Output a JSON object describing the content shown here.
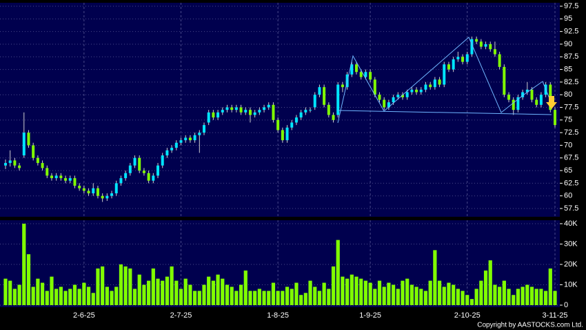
{
  "chart_data": {
    "type": "candlestick",
    "categories": [
      null,
      null,
      null,
      null,
      null,
      null,
      null,
      null,
      null,
      null,
      null,
      null,
      null,
      null,
      null,
      null,
      null,
      "2-6-25",
      null,
      null,
      null,
      null,
      null,
      null,
      null,
      null,
      null,
      null,
      null,
      null,
      null,
      null,
      null,
      null,
      null,
      null,
      null,
      null,
      "2-7-25",
      null,
      null,
      null,
      null,
      null,
      null,
      null,
      null,
      null,
      null,
      null,
      null,
      null,
      null,
      null,
      null,
      null,
      null,
      null,
      null,
      "1-8-25",
      null,
      null,
      null,
      null,
      null,
      null,
      null,
      null,
      null,
      null,
      null,
      null,
      null,
      null,
      null,
      null,
      null,
      null,
      null,
      "1-9-25",
      null,
      null,
      null,
      null,
      null,
      null,
      null,
      null,
      null,
      null,
      null,
      null,
      null,
      null,
      null,
      null,
      null,
      null,
      null,
      null,
      "2-10-25",
      null,
      null,
      null,
      null,
      null,
      null,
      null,
      null,
      null,
      null,
      null,
      null,
      null,
      null,
      null,
      null,
      null,
      null,
      "3-11-25"
    ],
    "open": [
      66,
      66.5,
      67,
      66,
      68,
      72.5,
      70,
      67.5,
      66.5,
      65.5,
      64,
      63.5,
      64,
      63.5,
      63,
      63.5,
      62,
      61.5,
      61,
      60.5,
      61.5,
      60,
      59.5,
      60,
      60.5,
      62.5,
      63.5,
      64.5,
      66,
      67.5,
      65,
      64.5,
      63,
      64,
      66,
      68,
      69,
      69.5,
      70.5,
      71,
      71.5,
      71,
      72,
      72.5,
      74.5,
      76.5,
      75.5,
      76.5,
      77,
      77.5,
      77,
      77.5,
      76.5,
      77,
      76,
      76.5,
      77,
      77.5,
      78,
      75,
      73,
      71,
      73.5,
      74.5,
      75.5,
      76.5,
      77,
      77.5,
      80,
      81.5,
      78,
      76,
      76,
      82,
      81.5,
      84,
      86,
      84.5,
      83.5,
      84.5,
      83,
      80,
      79,
      77.5,
      78.5,
      79.5,
      80,
      79.5,
      80.5,
      81,
      80.5,
      81,
      82,
      81.5,
      83,
      82,
      86,
      85,
      87,
      87.5,
      86.5,
      88,
      91,
      90.5,
      89.5,
      90,
      89,
      88,
      85.5,
      80,
      79,
      77,
      79.5,
      80.5,
      81,
      79,
      78,
      80,
      82,
      77
    ],
    "high": [
      67.2,
      69,
      67.5,
      66.5,
      76.5,
      73,
      70.5,
      68,
      67,
      66,
      64.5,
      64.5,
      64.5,
      64,
      64,
      64,
      62.5,
      62,
      61.5,
      62.5,
      62,
      60.5,
      60.5,
      61,
      63,
      64,
      65,
      66.5,
      68,
      68,
      65.5,
      65,
      64.5,
      66.5,
      68.5,
      69.5,
      70,
      71,
      71.5,
      72,
      72,
      72.5,
      73,
      74.5,
      77,
      77,
      77,
      77.5,
      78,
      78,
      78,
      78,
      77.5,
      77.5,
      77,
      77.5,
      78,
      78.5,
      78.5,
      75.5,
      73.5,
      74,
      75,
      76,
      77,
      77.5,
      77.5,
      80.5,
      82,
      82,
      78.5,
      76.5,
      82.5,
      82.5,
      84.5,
      86.5,
      86.5,
      85,
      85,
      85,
      83.5,
      80.5,
      79.5,
      79,
      80,
      80.5,
      80.5,
      81,
      81.5,
      81.5,
      81.5,
      82.5,
      82.5,
      83.5,
      83.5,
      86.5,
      86.5,
      87.5,
      88.5,
      88,
      88.5,
      91.5,
      91.5,
      91,
      90.5,
      90.5,
      90.5,
      88.5,
      86,
      80.5,
      79.5,
      80,
      81,
      82.5,
      81.5,
      79.5,
      80.5,
      82.5,
      82.5,
      77.5
    ],
    "low": [
      65.3,
      65.8,
      65.5,
      65,
      67.5,
      69.5,
      67,
      66,
      65,
      63.5,
      63,
      63,
      63,
      62.5,
      62.5,
      61.5,
      61,
      60.5,
      60,
      60,
      59.5,
      58.8,
      59,
      59.5,
      60,
      62,
      63,
      64,
      65.5,
      64.5,
      64,
      62.5,
      62.5,
      63.5,
      65.5,
      67.5,
      68.5,
      69,
      70,
      70.5,
      70.5,
      70.5,
      68.5,
      72,
      74,
      75,
      75,
      76,
      76.5,
      76.5,
      76.5,
      76,
      76,
      74.5,
      75.5,
      76,
      76.5,
      77,
      74.5,
      72.5,
      70.5,
      70.5,
      73,
      74,
      75,
      76,
      76.5,
      77,
      79.5,
      77.5,
      75.5,
      74.5,
      75.5,
      80.5,
      81,
      83.5,
      84,
      83,
      83,
      82.5,
      79.5,
      78.5,
      77,
      77,
      78,
      79,
      79,
      79,
      80,
      80,
      80,
      80.5,
      81,
      81,
      81.5,
      81.5,
      84.5,
      84.5,
      86.5,
      86,
      86,
      87.5,
      90,
      89,
      89,
      88.5,
      87.5,
      85,
      79.5,
      78.5,
      76,
      76.5,
      79,
      80,
      78.5,
      77.5,
      77.5,
      79.5,
      76.5,
      73.5
    ],
    "close": [
      66.5,
      67,
      66,
      65.5,
      72.5,
      70,
      67.5,
      66.5,
      65.5,
      64,
      63.5,
      64,
      63.5,
      63,
      63.5,
      62,
      61.5,
      61,
      60.5,
      61.5,
      60,
      59.5,
      60,
      60.5,
      62.5,
      63.5,
      64.5,
      66,
      67.5,
      65,
      64.5,
      63,
      64,
      66,
      68,
      69,
      69.5,
      70.5,
      71,
      71.5,
      71,
      72,
      72.5,
      74,
      76.5,
      75.5,
      76.5,
      77,
      77.5,
      77,
      77.5,
      76.5,
      77,
      76,
      76.5,
      77,
      77.5,
      78,
      75,
      73,
      71,
      73.5,
      74.5,
      75.5,
      76.5,
      77,
      77,
      80,
      81.5,
      78,
      76,
      75,
      82,
      81.5,
      84,
      86,
      84.5,
      83.5,
      84.5,
      83,
      80,
      79,
      77.5,
      78.5,
      79.5,
      80,
      79.5,
      80.5,
      81,
      80.5,
      81,
      82,
      81.5,
      83,
      82,
      86,
      85,
      87,
      87.5,
      86.5,
      88,
      91,
      90.5,
      89.5,
      90,
      89,
      88,
      85.5,
      80,
      79,
      77,
      79.5,
      80.5,
      81,
      79,
      78,
      80,
      82,
      77,
      74
    ],
    "volume": [
      13000,
      12000,
      8000,
      10000,
      40000,
      25000,
      9000,
      13000,
      11000,
      7000,
      14000,
      8000,
      9000,
      7000,
      8000,
      10000,
      8000,
      11000,
      9000,
      6000,
      18000,
      19000,
      9000,
      7000,
      9000,
      20000,
      19000,
      18000,
      8000,
      15000,
      10000,
      12000,
      18000,
      13000,
      12000,
      14000,
      19000,
      12000,
      8000,
      13000,
      10000,
      7000,
      7000,
      10000,
      14000,
      12000,
      15000,
      13000,
      10000,
      9000,
      7000,
      10000,
      17000,
      7000,
      7000,
      8000,
      7000,
      7000,
      11000,
      7000,
      7000,
      9000,
      8000,
      11000,
      5000,
      6000,
      12000,
      9000,
      7000,
      11000,
      8000,
      19000,
      32000,
      14000,
      13000,
      15000,
      14000,
      13000,
      12000,
      11000,
      8000,
      12000,
      9000,
      11000,
      10000,
      8000,
      12000,
      13000,
      10000,
      9000,
      8000,
      7000,
      12000,
      27000,
      12000,
      9000,
      11000,
      10000,
      8000,
      7000,
      5000,
      3000,
      8000,
      12000,
      17000,
      22000,
      10000,
      9000,
      12000,
      8000,
      5000,
      8000,
      9000,
      10000,
      9000,
      8000,
      8000,
      7000,
      18000,
      7000
    ],
    "up_color": "#00e5ff",
    "down_color": "#80ff00",
    "volume_color": "#80ff00",
    "ylim": [
      57.5,
      97.5
    ],
    "yticks": [
      57.5,
      60,
      62.5,
      65,
      67.5,
      70,
      72.5,
      75,
      77.5,
      80,
      82.5,
      85,
      87.5,
      90,
      92.5,
      95,
      97.5
    ],
    "volume_ylim": [
      0,
      40000
    ],
    "volume_yticks": [
      0,
      {
        "value": 10000,
        "label": "10K"
      },
      {
        "value": 20000,
        "label": "20K"
      },
      {
        "value": 30000,
        "label": "30K"
      },
      {
        "value": 40000,
        "label": "40K"
      }
    ],
    "grid": true,
    "copyright": "Copyright by AASTOCKS.com Ltd."
  }
}
